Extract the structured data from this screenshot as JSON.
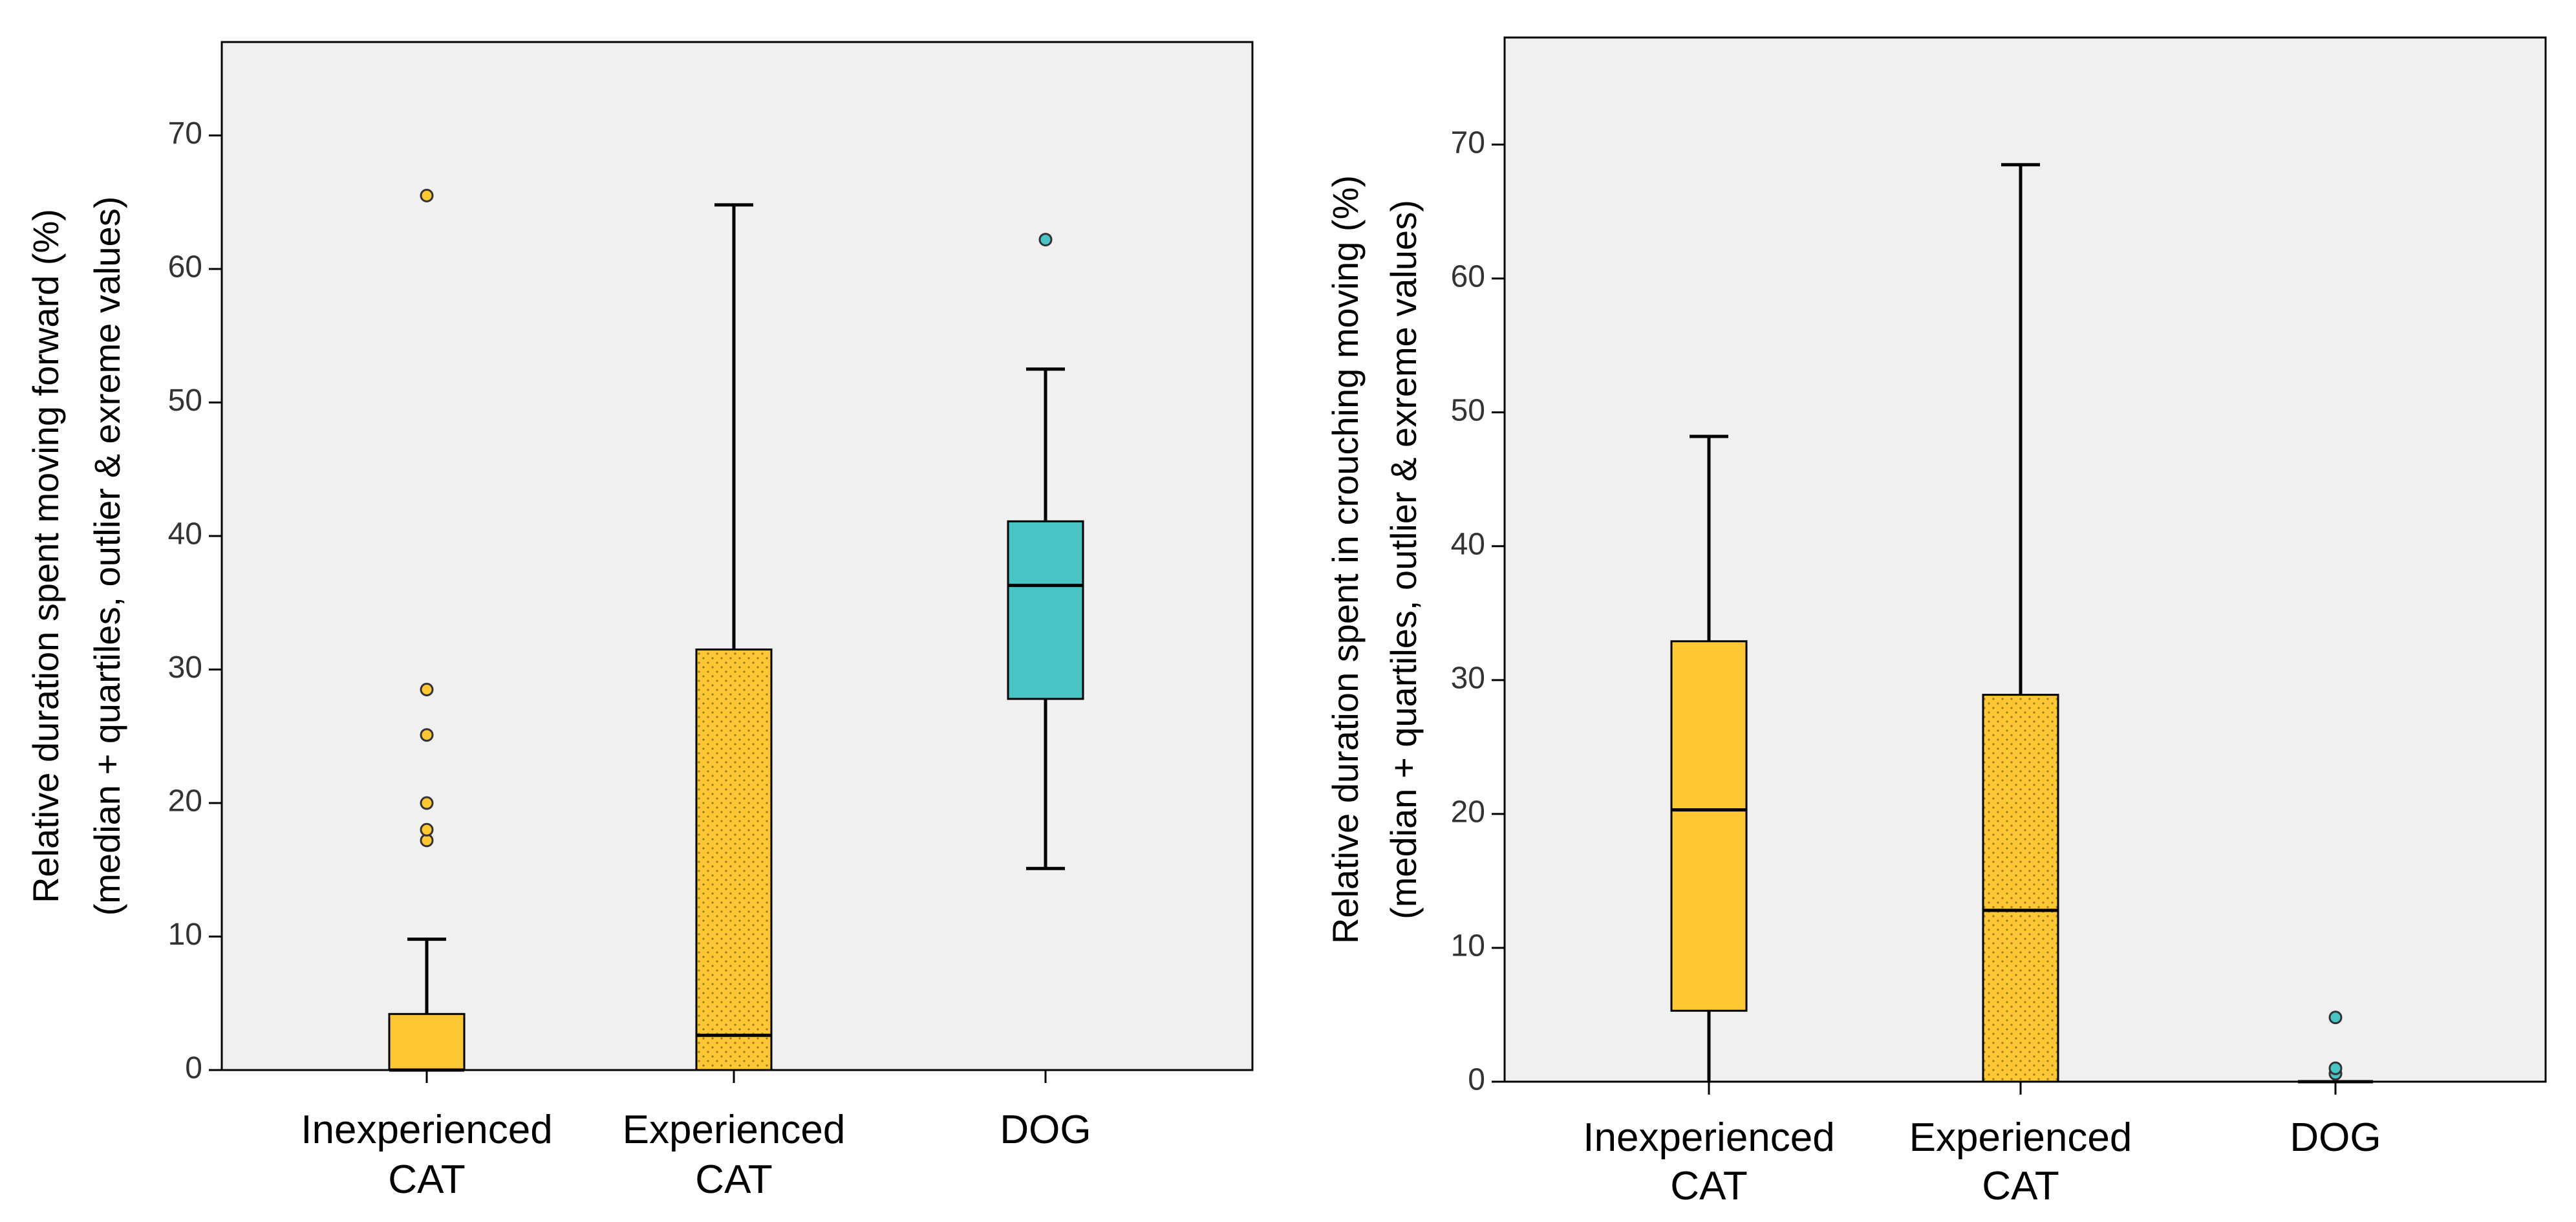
{
  "chart_data": [
    {
      "type": "boxplot",
      "title": "",
      "xlabel": "",
      "ylabel_line1": "Relative duration spent moving forward (%)",
      "ylabel_line2": "(median + quartiles, outlier & exreme values)",
      "ylim": [
        0,
        77
      ],
      "yticks": [
        0,
        10,
        20,
        30,
        40,
        50,
        60,
        70
      ],
      "grid": false,
      "categories": [
        {
          "line1": "Inexperienced",
          "line2": "CAT",
          "color": "#fec834",
          "pattern": "solid",
          "min": 0,
          "q1": 0,
          "median": 0,
          "q3": 4.2,
          "max": 9.8,
          "outliers": [
            17.2,
            18.0,
            20.0,
            25.1,
            28.5,
            65.5
          ]
        },
        {
          "line1": "Experienced",
          "line2": "CAT",
          "color": "#fec834",
          "pattern": "dotted",
          "min": 0,
          "q1": 0,
          "median": 2.6,
          "q3": 31.5,
          "max": 64.8,
          "outliers": []
        },
        {
          "line1": "DOG",
          "line2": "",
          "color": "#48c4c4",
          "pattern": "solid",
          "min": 15.1,
          "q1": 27.8,
          "median": 36.3,
          "q3": 41.1,
          "max": 52.5,
          "outliers": [
            62.2
          ]
        }
      ]
    },
    {
      "type": "boxplot",
      "title": "",
      "xlabel": "",
      "ylabel_line1": "Relative duration spent in crouching moving (%)",
      "ylabel_line2": "(median + quartiles, outlier & exreme values)",
      "ylim": [
        0,
        78
      ],
      "yticks": [
        0,
        10,
        20,
        30,
        40,
        50,
        60,
        70
      ],
      "grid": false,
      "categories": [
        {
          "line1": "Inexperienced",
          "line2": "CAT",
          "color": "#fec834",
          "pattern": "solid",
          "min": 0,
          "q1": 5.3,
          "median": 20.3,
          "q3": 32.9,
          "max": 48.2,
          "outliers": []
        },
        {
          "line1": "Experienced",
          "line2": "CAT",
          "color": "#fec834",
          "pattern": "dotted",
          "min": 0,
          "q1": 0,
          "median": 12.8,
          "q3": 28.9,
          "max": 68.5,
          "outliers": []
        },
        {
          "line1": "DOG",
          "line2": "",
          "color": "#48c4c4",
          "pattern": "solid",
          "min": 0,
          "q1": 0,
          "median": 0,
          "q3": 0,
          "max": 0,
          "outliers": [
            0.6,
            1.0,
            4.8
          ]
        }
      ]
    }
  ]
}
